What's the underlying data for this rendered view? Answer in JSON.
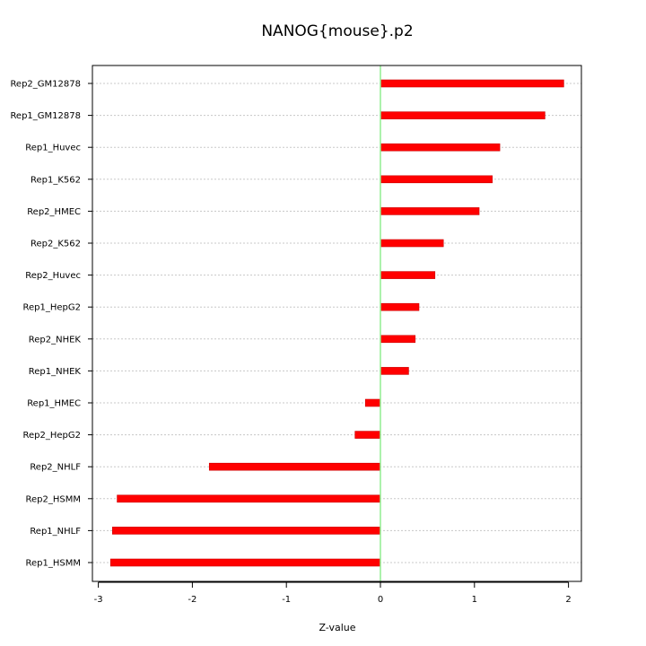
{
  "chart_data": {
    "type": "bar",
    "orientation": "horizontal",
    "title": "NANOG{mouse}.p2",
    "xlabel": "Z-value",
    "ylabel": "",
    "xlim": [
      -3.1,
      2.1
    ],
    "xticks": [
      "-3",
      "-2",
      "-1",
      "0",
      "1",
      "2"
    ],
    "zero_line_color": "#90ee90",
    "bar_color": "#ff0000",
    "grid": "horizontal dotted",
    "categories": [
      "Rep2_GM12878",
      "Rep1_GM12878",
      "Rep1_Huvec",
      "Rep1_K562",
      "Rep2_HMEC",
      "Rep2_K562",
      "Rep2_Huvec",
      "Rep1_HepG2",
      "Rep2_NHEK",
      "Rep1_NHEK",
      "Rep1_HMEC",
      "Rep2_HepG2",
      "Rep2_NHLF",
      "Rep2_HSMM",
      "Rep1_NHLF",
      "Rep1_HSMM"
    ],
    "values": [
      1.95,
      1.75,
      1.27,
      1.19,
      1.05,
      0.67,
      0.58,
      0.41,
      0.37,
      0.3,
      -0.16,
      -0.27,
      -1.82,
      -2.8,
      -2.85,
      -2.87
    ]
  }
}
